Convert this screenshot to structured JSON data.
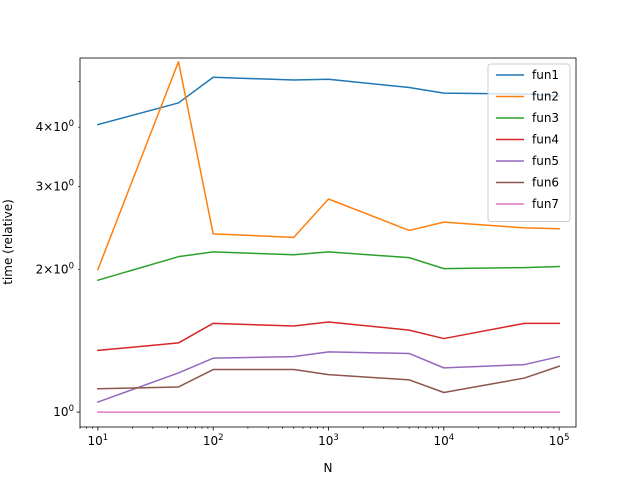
{
  "chart_data": {
    "type": "line",
    "title": "",
    "xlabel": "N",
    "ylabel": "time (relative)",
    "xscale": "log",
    "yscale": "log",
    "xlim": [
      7,
      140000
    ],
    "ylim": [
      0.93,
      5.6
    ],
    "x": [
      10,
      50,
      100,
      500,
      1000,
      5000,
      10000,
      50000,
      100000
    ],
    "x_ticks": [
      {
        "value": 10,
        "base": "10",
        "exp": "1"
      },
      {
        "value": 100,
        "base": "10",
        "exp": "2"
      },
      {
        "value": 1000,
        "base": "10",
        "exp": "3"
      },
      {
        "value": 10000,
        "base": "10",
        "exp": "4"
      },
      {
        "value": 100000,
        "base": "10",
        "exp": "5"
      }
    ],
    "y_ticks": [
      {
        "value": 1,
        "mant": "",
        "base": "10",
        "exp": "0"
      },
      {
        "value": 2,
        "mant": "2×",
        "base": "10",
        "exp": "0"
      },
      {
        "value": 3,
        "mant": "3×",
        "base": "10",
        "exp": "0"
      },
      {
        "value": 4,
        "mant": "4×",
        "base": "10",
        "exp": "0"
      }
    ],
    "legend_position": "upper-right",
    "grid": false,
    "series": [
      {
        "name": "fun1",
        "color": "#1f77b4",
        "values": [
          4.05,
          4.5,
          5.1,
          5.03,
          5.05,
          4.85,
          4.72,
          4.7,
          4.65
        ]
      },
      {
        "name": "fun2",
        "color": "#ff7f0e",
        "values": [
          2.0,
          5.5,
          2.38,
          2.34,
          2.82,
          2.42,
          2.52,
          2.45,
          2.44
        ]
      },
      {
        "name": "fun3",
        "color": "#2ca02c",
        "values": [
          1.9,
          2.13,
          2.18,
          2.15,
          2.18,
          2.12,
          2.01,
          2.02,
          2.03
        ]
      },
      {
        "name": "fun4",
        "color": "#d62728",
        "values": [
          1.35,
          1.4,
          1.54,
          1.52,
          1.55,
          1.49,
          1.43,
          1.54,
          1.54
        ]
      },
      {
        "name": "fun5",
        "color": "#9467bd",
        "values": [
          1.05,
          1.21,
          1.3,
          1.31,
          1.34,
          1.33,
          1.24,
          1.26,
          1.31
        ]
      },
      {
        "name": "fun6",
        "color": "#8c564b",
        "values": [
          1.12,
          1.13,
          1.23,
          1.23,
          1.2,
          1.17,
          1.1,
          1.18,
          1.25
        ]
      },
      {
        "name": "fun7",
        "color": "#e377c2",
        "values": [
          1.0,
          1.0,
          1.0,
          1.0,
          1.0,
          1.0,
          1.0,
          1.0,
          1.0
        ]
      }
    ]
  }
}
